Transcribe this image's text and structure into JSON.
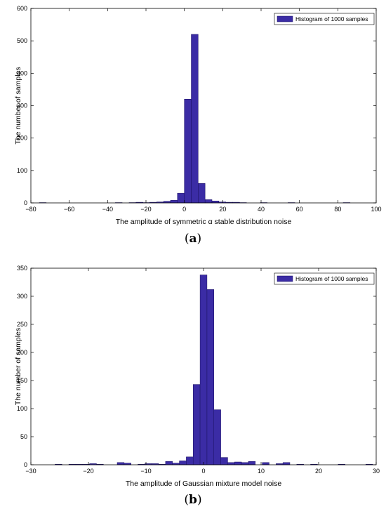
{
  "chart_data": [
    {
      "type": "bar",
      "legend": {
        "label": "Histogram of 1000 samples",
        "placement": "top-right"
      },
      "xlabel": "The amplitude of symmetric α stable distribution noise",
      "ylabel": "The number of samples",
      "caption_letter": "a",
      "xlim": [
        -80,
        100
      ],
      "ylim": [
        0,
        600
      ],
      "xticks": [
        -80,
        -60,
        -40,
        -20,
        0,
        20,
        40,
        60,
        80,
        100
      ],
      "yticks": [
        0,
        100,
        200,
        300,
        400,
        500,
        600
      ],
      "bin_width": 3.6,
      "bar_color": "#3b2ca5",
      "bins": [
        {
          "x": -73.8,
          "y": 1
        },
        {
          "x": -34.2,
          "y": 1
        },
        {
          "x": -27.0,
          "y": 1
        },
        {
          "x": -23.4,
          "y": 2
        },
        {
          "x": -19.8,
          "y": 1
        },
        {
          "x": -16.2,
          "y": 2
        },
        {
          "x": -12.6,
          "y": 3
        },
        {
          "x": -9.0,
          "y": 5
        },
        {
          "x": -5.4,
          "y": 8
        },
        {
          "x": -1.8,
          "y": 30
        },
        {
          "x": 1.8,
          "y": 320
        },
        {
          "x": 5.4,
          "y": 520
        },
        {
          "x": 9.0,
          "y": 60
        },
        {
          "x": 12.6,
          "y": 10
        },
        {
          "x": 16.2,
          "y": 6
        },
        {
          "x": 19.8,
          "y": 3
        },
        {
          "x": 23.4,
          "y": 2
        },
        {
          "x": 27.0,
          "y": 2
        },
        {
          "x": 30.6,
          "y": 1
        },
        {
          "x": 41.4,
          "y": 1
        },
        {
          "x": 55.8,
          "y": 1
        },
        {
          "x": 84.6,
          "y": 1
        }
      ]
    },
    {
      "type": "bar",
      "legend": {
        "label": "Histogram of 1000 samples",
        "placement": "top-right"
      },
      "xlabel": "The amplitude of Gaussian mixture model noise",
      "ylabel": "The number of samples",
      "caption_letter": "b",
      "xlim": [
        -30,
        30
      ],
      "ylim": [
        0,
        350
      ],
      "xticks": [
        -30,
        -20,
        -10,
        0,
        10,
        20,
        30
      ],
      "yticks": [
        0,
        50,
        100,
        150,
        200,
        250,
        300,
        350
      ],
      "bin_width": 1.2,
      "bar_color": "#3b2ca5",
      "bins": [
        {
          "x": -25.2,
          "y": 1
        },
        {
          "x": -22.8,
          "y": 1
        },
        {
          "x": -21.6,
          "y": 1
        },
        {
          "x": -20.4,
          "y": 1
        },
        {
          "x": -19.2,
          "y": 2
        },
        {
          "x": -18.0,
          "y": 1
        },
        {
          "x": -14.4,
          "y": 4
        },
        {
          "x": -13.2,
          "y": 3
        },
        {
          "x": -10.8,
          "y": 1
        },
        {
          "x": -9.6,
          "y": 2
        },
        {
          "x": -8.4,
          "y": 2
        },
        {
          "x": -7.2,
          "y": 1
        },
        {
          "x": -6.0,
          "y": 6
        },
        {
          "x": -4.8,
          "y": 3
        },
        {
          "x": -3.6,
          "y": 7
        },
        {
          "x": -2.4,
          "y": 14
        },
        {
          "x": -1.2,
          "y": 143
        },
        {
          "x": 0.0,
          "y": 338
        },
        {
          "x": 1.2,
          "y": 312
        },
        {
          "x": 2.4,
          "y": 98
        },
        {
          "x": 3.6,
          "y": 13
        },
        {
          "x": 4.8,
          "y": 4
        },
        {
          "x": 6.0,
          "y": 5
        },
        {
          "x": 7.2,
          "y": 4
        },
        {
          "x": 8.4,
          "y": 6
        },
        {
          "x": 10.8,
          "y": 4
        },
        {
          "x": 13.2,
          "y": 2
        },
        {
          "x": 14.4,
          "y": 4
        },
        {
          "x": 16.8,
          "y": 1
        },
        {
          "x": 19.2,
          "y": 1
        },
        {
          "x": 24.0,
          "y": 1
        },
        {
          "x": 28.8,
          "y": 1
        }
      ]
    }
  ]
}
